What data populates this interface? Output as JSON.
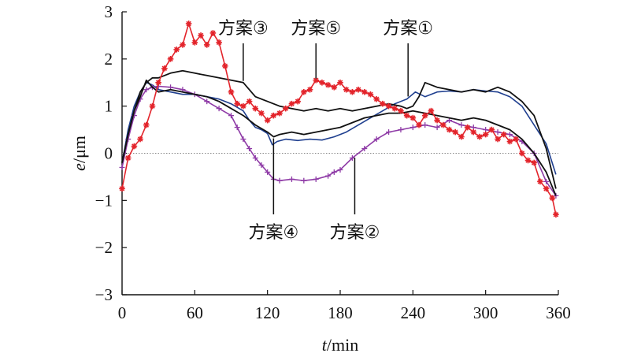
{
  "chart_data": {
    "type": "line",
    "xlabel": {
      "var": "t",
      "unit": "/min"
    },
    "ylabel": {
      "var": "e",
      "unit": "/μm"
    },
    "xlim": [
      0,
      360
    ],
    "ylim": [
      -3,
      3
    ],
    "x_ticks": [
      0,
      60,
      120,
      180,
      240,
      300,
      360
    ],
    "y_ticks": [
      3,
      2,
      1,
      0,
      -1,
      -2,
      -3
    ],
    "x_tick_labels": [
      "0",
      "60",
      "120",
      "180",
      "240",
      "300",
      "360"
    ],
    "y_tick_labels": [
      "3",
      "2",
      "1",
      "0",
      "−1",
      "−2",
      "−3"
    ],
    "zero_line": true,
    "series": [
      {
        "key": "plan1",
        "color": "#1f3f8f",
        "marker": "none",
        "points": [
          [
            0,
            -0.2
          ],
          [
            5,
            0.5
          ],
          [
            10,
            1.0
          ],
          [
            15,
            1.3
          ],
          [
            20,
            1.5
          ],
          [
            25,
            1.45
          ],
          [
            30,
            1.35
          ],
          [
            40,
            1.3
          ],
          [
            50,
            1.25
          ],
          [
            60,
            1.25
          ],
          [
            70,
            1.2
          ],
          [
            80,
            1.15
          ],
          [
            90,
            1.05
          ],
          [
            100,
            0.9
          ],
          [
            105,
            0.7
          ],
          [
            110,
            0.55
          ],
          [
            115,
            0.5
          ],
          [
            120,
            0.42
          ],
          [
            124,
            0.18
          ],
          [
            128,
            0.25
          ],
          [
            135,
            0.3
          ],
          [
            145,
            0.27
          ],
          [
            155,
            0.3
          ],
          [
            165,
            0.28
          ],
          [
            175,
            0.35
          ],
          [
            185,
            0.45
          ],
          [
            195,
            0.6
          ],
          [
            205,
            0.75
          ],
          [
            215,
            0.9
          ],
          [
            225,
            1.05
          ],
          [
            235,
            1.15
          ],
          [
            242,
            1.3
          ],
          [
            250,
            1.2
          ],
          [
            260,
            1.3
          ],
          [
            270,
            1.32
          ],
          [
            280,
            1.3
          ],
          [
            290,
            1.35
          ],
          [
            300,
            1.32
          ],
          [
            310,
            1.3
          ],
          [
            320,
            1.2
          ],
          [
            330,
            1.0
          ],
          [
            340,
            0.6
          ],
          [
            350,
            0.2
          ],
          [
            358,
            -0.45
          ]
        ]
      },
      {
        "key": "plan2",
        "color": "#8e3aa6",
        "marker": "plus",
        "points": [
          [
            0,
            -0.3
          ],
          [
            5,
            0.3
          ],
          [
            10,
            0.8
          ],
          [
            15,
            1.15
          ],
          [
            20,
            1.35
          ],
          [
            25,
            1.4
          ],
          [
            30,
            1.42
          ],
          [
            40,
            1.4
          ],
          [
            50,
            1.35
          ],
          [
            60,
            1.25
          ],
          [
            70,
            1.1
          ],
          [
            80,
            0.95
          ],
          [
            90,
            0.8
          ],
          [
            95,
            0.55
          ],
          [
            100,
            0.3
          ],
          [
            105,
            0.1
          ],
          [
            110,
            -0.1
          ],
          [
            115,
            -0.25
          ],
          [
            120,
            -0.4
          ],
          [
            125,
            -0.55
          ],
          [
            130,
            -0.58
          ],
          [
            140,
            -0.55
          ],
          [
            150,
            -0.58
          ],
          [
            160,
            -0.55
          ],
          [
            170,
            -0.48
          ],
          [
            175,
            -0.4
          ],
          [
            180,
            -0.35
          ],
          [
            190,
            -0.1
          ],
          [
            200,
            0.1
          ],
          [
            210,
            0.3
          ],
          [
            220,
            0.45
          ],
          [
            230,
            0.5
          ],
          [
            240,
            0.55
          ],
          [
            250,
            0.6
          ],
          [
            260,
            0.55
          ],
          [
            270,
            0.7
          ],
          [
            280,
            0.6
          ],
          [
            290,
            0.55
          ],
          [
            300,
            0.5
          ],
          [
            310,
            0.45
          ],
          [
            320,
            0.4
          ],
          [
            330,
            0.25
          ],
          [
            340,
            0.0
          ],
          [
            350,
            -0.6
          ],
          [
            358,
            -0.9
          ]
        ]
      },
      {
        "key": "plan3",
        "color": "#111111",
        "marker": "none",
        "points": [
          [
            0,
            -0.2
          ],
          [
            5,
            0.4
          ],
          [
            10,
            0.9
          ],
          [
            15,
            1.3
          ],
          [
            20,
            1.5
          ],
          [
            25,
            1.6
          ],
          [
            30,
            1.6
          ],
          [
            40,
            1.7
          ],
          [
            50,
            1.75
          ],
          [
            60,
            1.7
          ],
          [
            70,
            1.65
          ],
          [
            80,
            1.6
          ],
          [
            90,
            1.55
          ],
          [
            100,
            1.5
          ],
          [
            110,
            1.2
          ],
          [
            120,
            1.1
          ],
          [
            130,
            1.0
          ],
          [
            140,
            0.95
          ],
          [
            150,
            0.9
          ],
          [
            160,
            0.95
          ],
          [
            170,
            0.9
          ],
          [
            180,
            0.95
          ],
          [
            190,
            0.9
          ],
          [
            200,
            0.95
          ],
          [
            210,
            1.0
          ],
          [
            220,
            1.05
          ],
          [
            230,
            1.0
          ],
          [
            235,
            0.95
          ],
          [
            240,
            1.0
          ],
          [
            245,
            1.2
          ],
          [
            250,
            1.5
          ],
          [
            260,
            1.4
          ],
          [
            270,
            1.35
          ],
          [
            280,
            1.3
          ],
          [
            290,
            1.35
          ],
          [
            300,
            1.3
          ],
          [
            310,
            1.4
          ],
          [
            320,
            1.3
          ],
          [
            330,
            1.1
          ],
          [
            340,
            0.8
          ],
          [
            350,
            0.1
          ],
          [
            358,
            -0.75
          ]
        ]
      },
      {
        "key": "plan4",
        "color": "#111111",
        "marker": "none",
        "points": [
          [
            0,
            -0.2
          ],
          [
            5,
            0.4
          ],
          [
            10,
            0.9
          ],
          [
            15,
            1.2
          ],
          [
            20,
            1.55
          ],
          [
            25,
            1.4
          ],
          [
            30,
            1.3
          ],
          [
            40,
            1.35
          ],
          [
            50,
            1.3
          ],
          [
            60,
            1.25
          ],
          [
            70,
            1.2
          ],
          [
            80,
            1.1
          ],
          [
            90,
            0.95
          ],
          [
            100,
            0.8
          ],
          [
            110,
            0.6
          ],
          [
            120,
            0.45
          ],
          [
            125,
            0.35
          ],
          [
            130,
            0.4
          ],
          [
            140,
            0.45
          ],
          [
            150,
            0.4
          ],
          [
            160,
            0.45
          ],
          [
            170,
            0.5
          ],
          [
            180,
            0.55
          ],
          [
            190,
            0.65
          ],
          [
            200,
            0.75
          ],
          [
            210,
            0.8
          ],
          [
            220,
            0.85
          ],
          [
            230,
            0.85
          ],
          [
            240,
            0.9
          ],
          [
            250,
            0.85
          ],
          [
            260,
            0.8
          ],
          [
            270,
            0.75
          ],
          [
            280,
            0.7
          ],
          [
            290,
            0.75
          ],
          [
            300,
            0.7
          ],
          [
            310,
            0.6
          ],
          [
            320,
            0.5
          ],
          [
            330,
            0.3
          ],
          [
            340,
            0.0
          ],
          [
            350,
            -0.4
          ],
          [
            358,
            -0.9
          ]
        ]
      },
      {
        "key": "plan5",
        "color": "#e3242b",
        "marker": "star",
        "points": [
          [
            0,
            -0.75
          ],
          [
            5,
            -0.1
          ],
          [
            10,
            0.15
          ],
          [
            15,
            0.3
          ],
          [
            20,
            0.6
          ],
          [
            25,
            1.0
          ],
          [
            30,
            1.5
          ],
          [
            35,
            1.8
          ],
          [
            40,
            2.0
          ],
          [
            45,
            2.2
          ],
          [
            50,
            2.3
          ],
          [
            55,
            2.75
          ],
          [
            60,
            2.35
          ],
          [
            65,
            2.5
          ],
          [
            70,
            2.3
          ],
          [
            75,
            2.55
          ],
          [
            80,
            2.35
          ],
          [
            85,
            1.85
          ],
          [
            90,
            1.3
          ],
          [
            95,
            1.05
          ],
          [
            100,
            1.0
          ],
          [
            105,
            1.1
          ],
          [
            110,
            0.95
          ],
          [
            115,
            0.85
          ],
          [
            120,
            0.7
          ],
          [
            125,
            0.8
          ],
          [
            130,
            0.85
          ],
          [
            135,
            0.95
          ],
          [
            140,
            1.05
          ],
          [
            145,
            1.1
          ],
          [
            150,
            1.3
          ],
          [
            155,
            1.35
          ],
          [
            160,
            1.55
          ],
          [
            165,
            1.5
          ],
          [
            170,
            1.45
          ],
          [
            175,
            1.4
          ],
          [
            180,
            1.5
          ],
          [
            185,
            1.35
          ],
          [
            190,
            1.3
          ],
          [
            195,
            1.35
          ],
          [
            200,
            1.3
          ],
          [
            205,
            1.25
          ],
          [
            210,
            1.15
          ],
          [
            215,
            1.05
          ],
          [
            220,
            1.0
          ],
          [
            225,
            0.95
          ],
          [
            230,
            0.9
          ],
          [
            235,
            0.8
          ],
          [
            240,
            0.75
          ],
          [
            245,
            0.6
          ],
          [
            250,
            0.8
          ],
          [
            255,
            0.9
          ],
          [
            260,
            0.7
          ],
          [
            265,
            0.6
          ],
          [
            270,
            0.5
          ],
          [
            275,
            0.45
          ],
          [
            280,
            0.35
          ],
          [
            285,
            0.55
          ],
          [
            290,
            0.45
          ],
          [
            295,
            0.35
          ],
          [
            300,
            0.4
          ],
          [
            305,
            0.5
          ],
          [
            310,
            0.3
          ],
          [
            315,
            0.4
          ],
          [
            320,
            0.25
          ],
          [
            325,
            0.3
          ],
          [
            330,
            0.0
          ],
          [
            335,
            -0.15
          ],
          [
            340,
            -0.2
          ],
          [
            345,
            -0.6
          ],
          [
            350,
            -0.75
          ],
          [
            355,
            -0.95
          ],
          [
            358,
            -1.3
          ]
        ]
      }
    ],
    "annotations": [
      {
        "label": "方案③",
        "series": "plan3",
        "x": 100
      },
      {
        "label": "方案⑤",
        "series": "plan5",
        "x": 160
      },
      {
        "label": "方案①",
        "series": "plan1",
        "x": 236
      },
      {
        "label": "方案④",
        "series": "plan4",
        "x": 125
      },
      {
        "label": "方案②",
        "series": "plan2",
        "x": 192
      }
    ]
  }
}
